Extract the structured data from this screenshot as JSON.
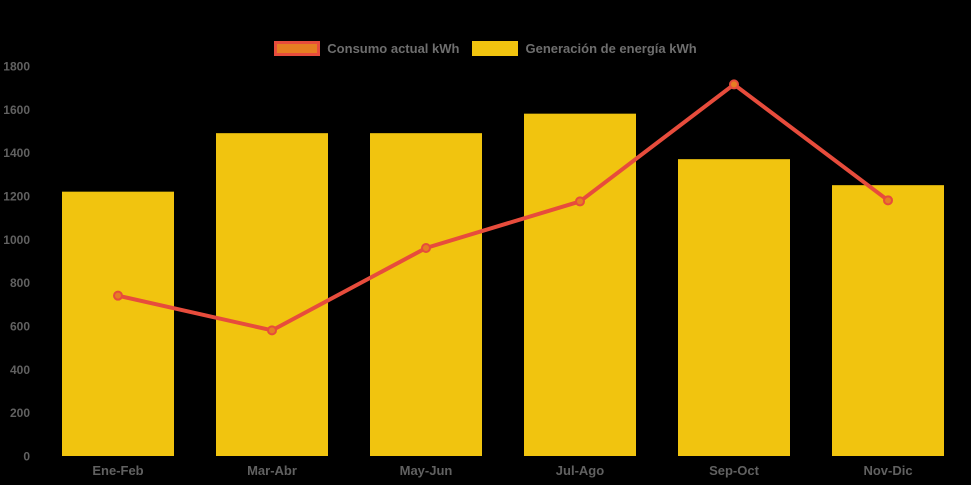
{
  "legend": {
    "position": "top"
  },
  "colors": {
    "background": "#000000",
    "bar_fill": "#F1C40F",
    "line_stroke": "#E74C3C",
    "marker_fill": "#E67E22",
    "axis_text": "#616161",
    "legend_text": "#6e6e6e"
  },
  "chart_data": {
    "type": "bar",
    "subtype": "bar-line-combo",
    "title": "",
    "xlabel": "",
    "ylabel": "",
    "categories": [
      "Ene-Feb",
      "Mar-Abr",
      "May-Jun",
      "Jul-Ago",
      "Sep-Oct",
      "Nov-Dic"
    ],
    "series": [
      {
        "name": "Consumo actual kWh",
        "type": "line",
        "values": [
          740,
          580,
          960,
          1175,
          1715,
          1180
        ],
        "line_color": "#E74C3C",
        "marker_fill": "#E67E22",
        "marker_stroke": "#E74C3C"
      },
      {
        "name": "Generación de energía kWh",
        "type": "bar",
        "values": [
          1220,
          1490,
          1490,
          1580,
          1370,
          1250
        ],
        "bar_color": "#F1C40F"
      }
    ],
    "ylim": [
      0,
      1800
    ],
    "ytick_step": 200,
    "yticks": [
      0,
      200,
      400,
      600,
      800,
      1000,
      1200,
      1400,
      1600,
      1800
    ],
    "grid": false,
    "legend_position": "top",
    "background": "#000000"
  }
}
